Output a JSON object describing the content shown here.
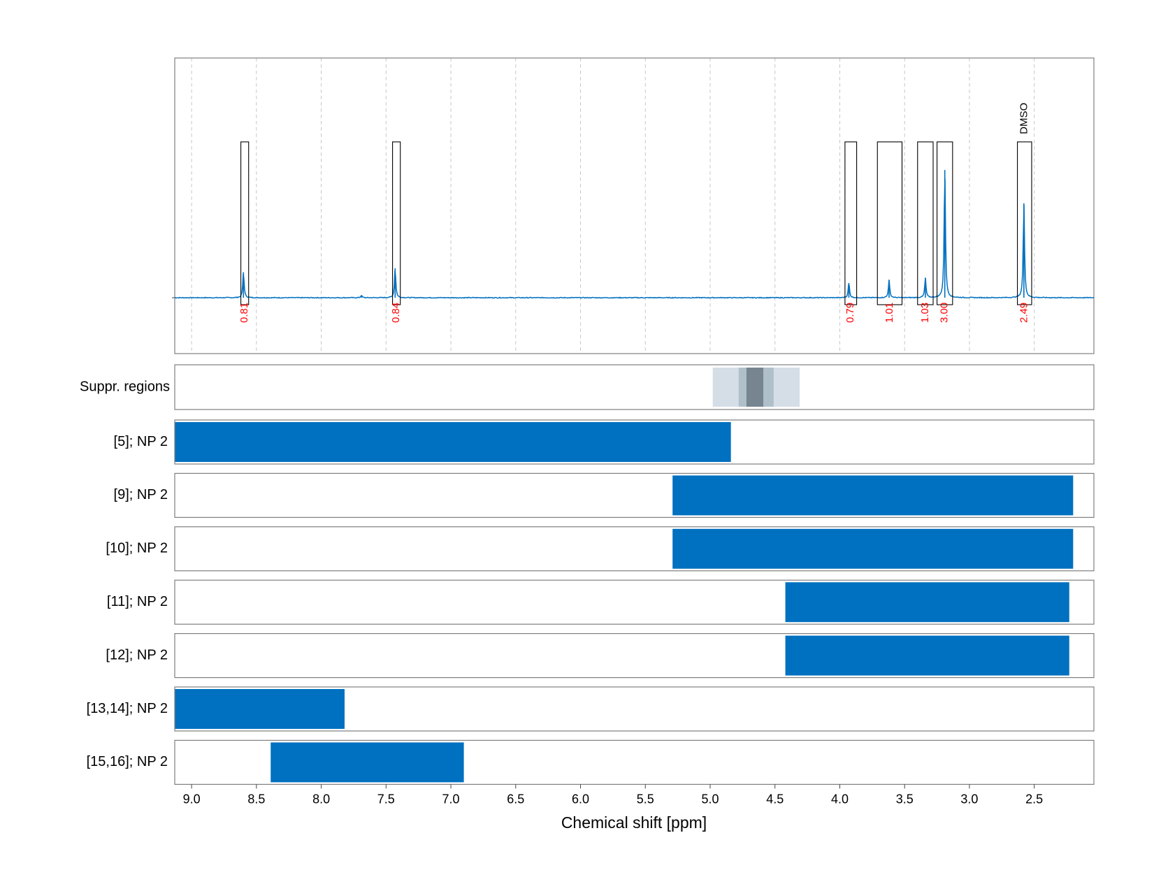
{
  "chart_data": {
    "type": "line",
    "xlabel": "Chemical shift [ppm]",
    "x_axis": {
      "range": [
        9.13,
        2.04
      ],
      "reversed": true,
      "ticks": [
        "9.0",
        "8.5",
        "8.0",
        "7.5",
        "7.0",
        "6.5",
        "6.0",
        "5.5",
        "5.0",
        "4.5",
        "4.0",
        "3.5",
        "3.0",
        "2.5"
      ]
    },
    "grid": true,
    "spectrum": {
      "color": "#0070c0",
      "baseline": 0,
      "ylim": [
        -0.26,
        1.22
      ],
      "peaks": [
        {
          "shift": 8.6,
          "height": 0.13
        },
        {
          "shift": 7.43,
          "height": 0.15
        },
        {
          "shift": 7.69,
          "height": 0.012
        },
        {
          "shift": 3.93,
          "height": 0.075
        },
        {
          "shift": 3.62,
          "height": 0.09
        },
        {
          "shift": 3.34,
          "height": 0.1
        },
        {
          "shift": 3.19,
          "height": 0.65
        },
        {
          "shift": 2.58,
          "height": 0.48
        }
      ]
    },
    "integrals": [
      {
        "from": 8.62,
        "to": 8.56,
        "value": "0.81"
      },
      {
        "from": 7.45,
        "to": 7.39,
        "value": "0.84"
      },
      {
        "from": 3.96,
        "to": 3.87,
        "value": "0.79"
      },
      {
        "from": 3.71,
        "to": 3.52,
        "value": "1.01"
      },
      {
        "from": 3.4,
        "to": 3.28,
        "value": "1.03"
      },
      {
        "from": 3.25,
        "to": 3.13,
        "value": "3.00"
      },
      {
        "from": 2.63,
        "to": 2.52,
        "value": "2.49",
        "label": "DMSO"
      }
    ],
    "integral_color": "#ff0000",
    "suppression_regions": {
      "label": "Suppr. regions",
      "bands": [
        {
          "from": 4.98,
          "to": 4.31,
          "color": "#d5dee6"
        },
        {
          "from": 4.78,
          "to": 4.51,
          "color": "#b0c0cb"
        },
        {
          "from": 4.72,
          "to": 4.59,
          "color": "#76858f"
        }
      ]
    },
    "bar_color": "#0070c0",
    "rows": [
      {
        "label": "[5]; NP 2",
        "from": 9.13,
        "to": 4.84
      },
      {
        "label": "[9]; NP 2",
        "from": 5.29,
        "to": 2.2
      },
      {
        "label": "[10]; NP 2",
        "from": 5.29,
        "to": 2.2
      },
      {
        "label": "[11]; NP 2",
        "from": 4.42,
        "to": 2.23
      },
      {
        "label": "[12]; NP 2",
        "from": 4.42,
        "to": 2.23
      },
      {
        "label": "[13,14]; NP 2",
        "from": 9.13,
        "to": 7.82
      },
      {
        "label": "[15,16]; NP 2",
        "from": 8.39,
        "to": 6.9
      }
    ]
  }
}
